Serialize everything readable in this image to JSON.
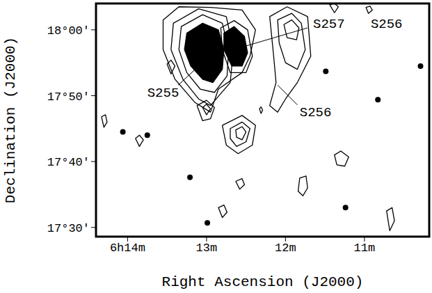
{
  "chart_data": {
    "type": "contour",
    "x_label": "Right Ascension (J2000)",
    "y_label": "Declination (J2000)",
    "xlim": [
      14.4,
      10.18
    ],
    "ylim": [
      28.6,
      64
    ],
    "xticks": [
      {
        "value": 14,
        "label": "6h14m"
      },
      {
        "value": 13,
        "label": "13m"
      },
      {
        "value": 12,
        "label": "12m"
      },
      {
        "value": 11,
        "label": "11m"
      }
    ],
    "yticks": [
      {
        "value": 30,
        "label": "17°30'"
      },
      {
        "value": 40,
        "label": "17°40'"
      },
      {
        "value": 50,
        "label": "17°50'"
      },
      {
        "value": 60,
        "label": "18°00'"
      }
    ],
    "grid": false,
    "color": "#000000",
    "contours": [
      {
        "type": "line",
        "points": [
          [
            13.55,
            61.5
          ],
          [
            13.35,
            63.5
          ],
          [
            12.95,
            63.4
          ],
          [
            12.55,
            63
          ],
          [
            12.38,
            60
          ],
          [
            12.45,
            56
          ],
          [
            12.55,
            53.5
          ],
          [
            12.85,
            51
          ],
          [
            12.95,
            47.5
          ],
          [
            13.15,
            49
          ],
          [
            13.4,
            52.5
          ],
          [
            13.55,
            57
          ]
        ]
      },
      {
        "type": "line",
        "points": [
          [
            13.42,
            61
          ],
          [
            13.1,
            63.2
          ],
          [
            12.75,
            62
          ],
          [
            12.66,
            57
          ],
          [
            12.7,
            52
          ],
          [
            12.95,
            48.5
          ],
          [
            13.1,
            49.5
          ],
          [
            13.3,
            52.5
          ],
          [
            13.45,
            57
          ]
        ]
      },
      {
        "type": "line",
        "points": [
          [
            13.32,
            60.5
          ],
          [
            13.05,
            62.3
          ],
          [
            12.8,
            61
          ],
          [
            12.72,
            57
          ],
          [
            12.74,
            53
          ],
          [
            12.9,
            50.5
          ],
          [
            13.08,
            51
          ],
          [
            13.25,
            53.5
          ],
          [
            13.35,
            57
          ]
        ]
      },
      {
        "type": "filled",
        "points": [
          [
            13.25,
            59.5
          ],
          [
            13.05,
            61
          ],
          [
            12.85,
            60
          ],
          [
            12.78,
            57
          ],
          [
            12.8,
            54
          ],
          [
            12.92,
            52
          ],
          [
            13.05,
            52.5
          ],
          [
            13.2,
            54.5
          ],
          [
            13.28,
            57
          ]
        ]
      },
      {
        "type": "line",
        "points": [
          [
            12.82,
            60.3
          ],
          [
            12.65,
            61.4
          ],
          [
            12.48,
            60
          ],
          [
            12.42,
            56
          ],
          [
            12.5,
            53.5
          ],
          [
            12.7,
            53.5
          ],
          [
            12.8,
            57
          ]
        ]
      },
      {
        "type": "filled",
        "points": [
          [
            12.78,
            59.5
          ],
          [
            12.65,
            60.5
          ],
          [
            12.52,
            59
          ],
          [
            12.48,
            56.5
          ],
          [
            12.55,
            54.5
          ],
          [
            12.68,
            54.5
          ],
          [
            12.78,
            57
          ]
        ]
      },
      {
        "type": "line",
        "points": [
          [
            12.2,
            62
          ],
          [
            11.98,
            63.5
          ],
          [
            11.72,
            62
          ],
          [
            11.68,
            56
          ],
          [
            11.85,
            52
          ],
          [
            12.0,
            49.5
          ],
          [
            12.1,
            47.5
          ],
          [
            12.2,
            48.5
          ],
          [
            12.12,
            52
          ],
          [
            12.15,
            56
          ]
        ]
      },
      {
        "type": "line",
        "points": [
          [
            12.1,
            61.5
          ],
          [
            11.92,
            62.5
          ],
          [
            11.8,
            61
          ],
          [
            11.75,
            57
          ],
          [
            11.85,
            54
          ],
          [
            12.0,
            55
          ],
          [
            12.08,
            58
          ]
        ]
      },
      {
        "type": "line",
        "points": [
          [
            12.02,
            60.8
          ],
          [
            11.92,
            61.5
          ],
          [
            11.83,
            60.3
          ],
          [
            11.86,
            58.5
          ],
          [
            11.98,
            58.8
          ]
        ]
      },
      {
        "type": "line",
        "points": [
          [
            13.5,
            54.8
          ],
          [
            13.45,
            55.4
          ],
          [
            13.4,
            54.5
          ],
          [
            13.45,
            53.3
          ]
        ]
      },
      {
        "type": "line",
        "points": [
          [
            13.12,
            48.5
          ],
          [
            13.0,
            49.3
          ],
          [
            12.9,
            48.2
          ],
          [
            12.95,
            46.5
          ],
          [
            13.05,
            46.2
          ]
        ]
      },
      {
        "type": "line",
        "points": [
          [
            13.05,
            48.2
          ],
          [
            13.0,
            48.7
          ],
          [
            12.95,
            48
          ],
          [
            13.0,
            47.1
          ]
        ]
      },
      {
        "type": "line",
        "points": [
          [
            12.8,
            45.5
          ],
          [
            12.55,
            47
          ],
          [
            12.38,
            45.5
          ],
          [
            12.42,
            42.5
          ],
          [
            12.6,
            41.2
          ],
          [
            12.75,
            42.5
          ]
        ]
      },
      {
        "type": "line",
        "points": [
          [
            12.7,
            45
          ],
          [
            12.55,
            46
          ],
          [
            12.45,
            45
          ],
          [
            12.5,
            43
          ],
          [
            12.62,
            42.3
          ],
          [
            12.7,
            43.5
          ]
        ]
      },
      {
        "type": "line",
        "points": [
          [
            12.63,
            44.8
          ],
          [
            12.55,
            45.3
          ],
          [
            12.5,
            44.5
          ],
          [
            12.55,
            43.3
          ],
          [
            12.62,
            43.7
          ]
        ]
      },
      {
        "type": "line",
        "points": [
          [
            13.9,
            43.5
          ],
          [
            13.85,
            44
          ],
          [
            13.8,
            43.3
          ],
          [
            13.85,
            42.3
          ]
        ]
      },
      {
        "type": "line",
        "points": [
          [
            12.33,
            48
          ],
          [
            12.31,
            48.3
          ],
          [
            12.29,
            47.8
          ],
          [
            12.31,
            47.3
          ]
        ]
      },
      {
        "type": "line",
        "points": [
          [
            11.38,
            41
          ],
          [
            11.3,
            41.6
          ],
          [
            11.2,
            40.7
          ],
          [
            11.25,
            39.3
          ],
          [
            11.35,
            39.5
          ]
        ]
      },
      {
        "type": "line",
        "points": [
          [
            11.82,
            37.5
          ],
          [
            11.74,
            37.8
          ],
          [
            11.72,
            36
          ],
          [
            11.78,
            34.8
          ],
          [
            11.84,
            35.5
          ]
        ]
      },
      {
        "type": "line",
        "points": [
          [
            12.63,
            37
          ],
          [
            12.55,
            37.4
          ],
          [
            12.52,
            36.5
          ],
          [
            12.58,
            35.8
          ]
        ]
      },
      {
        "type": "line",
        "points": [
          [
            12.85,
            33
          ],
          [
            12.78,
            33.4
          ],
          [
            12.74,
            32.3
          ],
          [
            12.8,
            31.5
          ]
        ]
      },
      {
        "type": "line",
        "points": [
          [
            10.72,
            32.5
          ],
          [
            10.65,
            33
          ],
          [
            10.62,
            31
          ],
          [
            10.68,
            29.5
          ]
        ]
      },
      {
        "type": "line",
        "points": [
          [
            11.44,
            63.8
          ],
          [
            11.38,
            64
          ],
          [
            11.33,
            63.5
          ],
          [
            11.38,
            62.6
          ]
        ]
      },
      {
        "type": "line",
        "points": [
          [
            10.98,
            63.4
          ],
          [
            10.93,
            63.6
          ],
          [
            10.9,
            63
          ],
          [
            10.95,
            62.5
          ]
        ]
      },
      {
        "type": "line",
        "points": [
          [
            14.33,
            46.8
          ],
          [
            14.28,
            47.1
          ],
          [
            14.26,
            46
          ],
          [
            14.3,
            45.2
          ]
        ]
      }
    ],
    "sources": {
      "x": [
        14.06,
        13.75,
        13.21,
        11.24,
        10.83,
        12.99,
        11.49,
        10.29
      ],
      "y": [
        44.5,
        44.0,
        37.6,
        33.0,
        49.4,
        30.7,
        53.7,
        54.5
      ],
      "color": "#000000"
    },
    "annotations": [
      {
        "text": "S255",
        "x": 13.55,
        "y": 50.5,
        "line": [
          [
            13.36,
            51.6
          ],
          [
            12.98,
            55.8
          ]
        ]
      },
      {
        "text": "S257",
        "x": 11.45,
        "y": 61.0,
        "line": [
          [
            11.72,
            60.3
          ],
          [
            12.6,
            57.2
          ]
        ]
      },
      {
        "text": "S256",
        "x": 11.62,
        "y": 47.6,
        "line": [
          [
            11.85,
            48.6
          ],
          [
            12.1,
            51.6
          ]
        ]
      },
      {
        "text": "S256",
        "x": 10.72,
        "y": 61.0
      }
    ]
  }
}
